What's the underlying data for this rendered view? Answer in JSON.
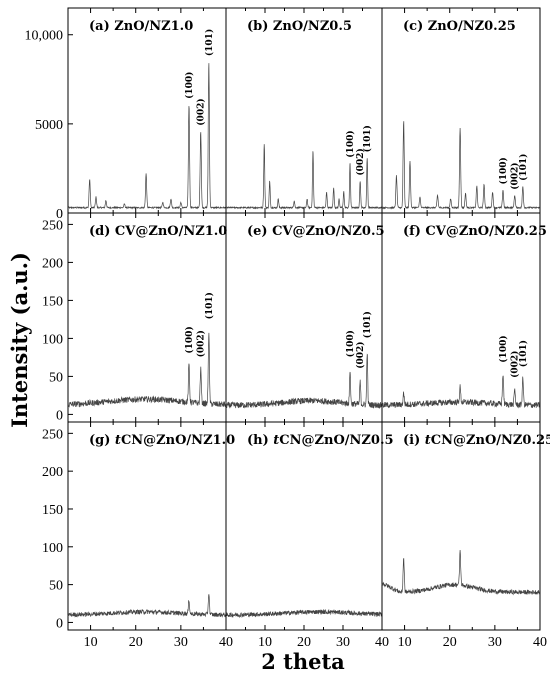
{
  "chart_data": {
    "type": "line",
    "xlabel": "2 theta",
    "ylabel": "Intensity (a.u.)",
    "x_ticks": [
      "10",
      "20",
      "30",
      "40"
    ],
    "rows": [
      {
        "row": "ZnO",
        "ylim": [
          0,
          11500
        ],
        "y_ticks": [
          "0",
          "5000",
          "10,000"
        ],
        "y_tick_values": [
          0,
          5000,
          10000
        ],
        "baseline": 300,
        "noise": 40,
        "panels": [
          {
            "label": "(a) ZnO/NZ1.0",
            "xlim": [
              5,
              40
            ],
            "peaks": [
              [
                9.8,
                1600
              ],
              [
                11.2,
                600
              ],
              [
                13.4,
                400
              ],
              [
                17.5,
                200
              ],
              [
                22.3,
                1900
              ],
              [
                26.0,
                300
              ],
              [
                27.8,
                500
              ],
              [
                30.0,
                300
              ],
              [
                31.8,
                5800
              ],
              [
                34.4,
                4300
              ],
              [
                36.2,
                8200
              ]
            ],
            "peak_labels": [
              {
                "text": "(100)",
                "x": 31.8,
                "y": 6400
              },
              {
                "text": "(002)",
                "x": 34.4,
                "y": 4900
              },
              {
                "text": "(101)",
                "x": 36.2,
                "y": 8800
              }
            ]
          },
          {
            "label": "(b) ZnO/NZ0.5",
            "xlim": [
              0,
              40
            ],
            "peaks": [
              [
                9.8,
                3600
              ],
              [
                11.2,
                1500
              ],
              [
                13.4,
                500
              ],
              [
                17.5,
                400
              ],
              [
                20.8,
                500
              ],
              [
                22.3,
                3200
              ],
              [
                25.8,
                900
              ],
              [
                27.6,
                1100
              ],
              [
                29.0,
                500
              ],
              [
                30.2,
                900
              ],
              [
                31.8,
                2500
              ],
              [
                34.4,
                1500
              ],
              [
                36.2,
                2800
              ]
            ],
            "peak_labels": [
              {
                "text": "(100)",
                "x": 31.8,
                "y": 3100
              },
              {
                "text": "(002)",
                "x": 34.4,
                "y": 2100
              },
              {
                "text": "(101)",
                "x": 36.2,
                "y": 3400
              }
            ]
          },
          {
            "label": "(c) ZnO/NZ0.25",
            "xlim": [
              5,
              40
            ],
            "peaks": [
              [
                9.8,
                4900
              ],
              [
                8.2,
                1800
              ],
              [
                11.2,
                2600
              ],
              [
                13.4,
                600
              ],
              [
                17.3,
                700
              ],
              [
                20.2,
                500
              ],
              [
                22.3,
                4500
              ],
              [
                23.5,
                800
              ],
              [
                26.0,
                1200
              ],
              [
                27.6,
                1300
              ],
              [
                29.5,
                900
              ],
              [
                31.8,
                1000
              ],
              [
                34.4,
                700
              ],
              [
                36.2,
                1200
              ]
            ],
            "peak_labels": [
              {
                "text": "(100)",
                "x": 31.8,
                "y": 1600
              },
              {
                "text": "(002)",
                "x": 34.4,
                "y": 1300
              },
              {
                "text": "(101)",
                "x": 36.2,
                "y": 1800
              }
            ]
          }
        ]
      },
      {
        "row": "CV@ZnO",
        "ylim": [
          -10,
          265
        ],
        "y_ticks": [
          "0",
          "50",
          "100",
          "150",
          "200",
          "250"
        ],
        "y_tick_values": [
          0,
          50,
          100,
          150,
          200,
          250
        ],
        "baseline": 12,
        "noise": 4,
        "panels": [
          {
            "label": "(d) CV@ZnO/NZ1.0",
            "xlim": [
              5,
              40
            ],
            "bump": [
              22,
              8,
              12
            ],
            "peaks": [
              [
                31.8,
                50
              ],
              [
                34.4,
                45
              ],
              [
                36.2,
                95
              ]
            ],
            "peak_labels": [
              {
                "text": "(100)",
                "x": 31.8,
                "y": 80
              },
              {
                "text": "(002)",
                "x": 34.4,
                "y": 75
              },
              {
                "text": "(101)",
                "x": 36.2,
                "y": 125
              }
            ]
          },
          {
            "label": "(e) CV@ZnO/NZ0.5",
            "xlim": [
              0,
              40
            ],
            "bump": [
              22,
              6,
              10
            ],
            "peaks": [
              [
                31.8,
                45
              ],
              [
                34.4,
                30
              ],
              [
                36.2,
                70
              ]
            ],
            "peak_labels": [
              {
                "text": "(100)",
                "x": 31.8,
                "y": 75
              },
              {
                "text": "(002)",
                "x": 34.4,
                "y": 60
              },
              {
                "text": "(101)",
                "x": 36.2,
                "y": 100
              }
            ]
          },
          {
            "label": "(f) CV@ZnO/NZ0.25",
            "xlim": [
              5,
              40
            ],
            "bump": [
              22,
              4,
              10
            ],
            "peaks": [
              [
                9.8,
                15
              ],
              [
                22.3,
                20
              ],
              [
                31.8,
                40
              ],
              [
                34.4,
                20
              ],
              [
                36.2,
                35
              ]
            ],
            "peak_labels": [
              {
                "text": "(100)",
                "x": 31.8,
                "y": 68
              },
              {
                "text": "(002)",
                "x": 34.4,
                "y": 48
              },
              {
                "text": "(101)",
                "x": 36.2,
                "y": 62
              }
            ]
          }
        ]
      },
      {
        "row": "tCN@ZnO",
        "ylim": [
          -10,
          265
        ],
        "y_ticks": [
          "0",
          "50",
          "100",
          "150",
          "200",
          "250"
        ],
        "y_tick_values": [
          0,
          50,
          100,
          150,
          200,
          250
        ],
        "baseline": 10,
        "noise": 3,
        "panels": [
          {
            "label_prefix": "(g) ",
            "label_italic": "t",
            "label_rest": "CN@ZnO/NZ1.0",
            "xlim": [
              5,
              40
            ],
            "bump": [
              22,
              4,
              10
            ],
            "peaks": [
              [
                31.8,
                18
              ],
              [
                36.2,
                28
              ]
            ],
            "peak_labels": []
          },
          {
            "label_prefix": "(h) ",
            "label_italic": "t",
            "label_rest": "CN@ZnO/NZ0.5",
            "xlim": [
              0,
              40
            ],
            "bump": [
              24,
              4,
              12
            ],
            "peaks": [],
            "peak_labels": []
          },
          {
            "label_prefix": "(i)  ",
            "label_italic": "t",
            "label_rest": "CN@ZnO/NZ0.25",
            "xlim": [
              5,
              40
            ],
            "baseline_override": 40,
            "bump": [
              21,
              10,
              6
            ],
            "peaks": [
              [
                9.8,
                45
              ],
              [
                22.3,
                45
              ]
            ],
            "peak_labels": []
          }
        ]
      }
    ]
  }
}
